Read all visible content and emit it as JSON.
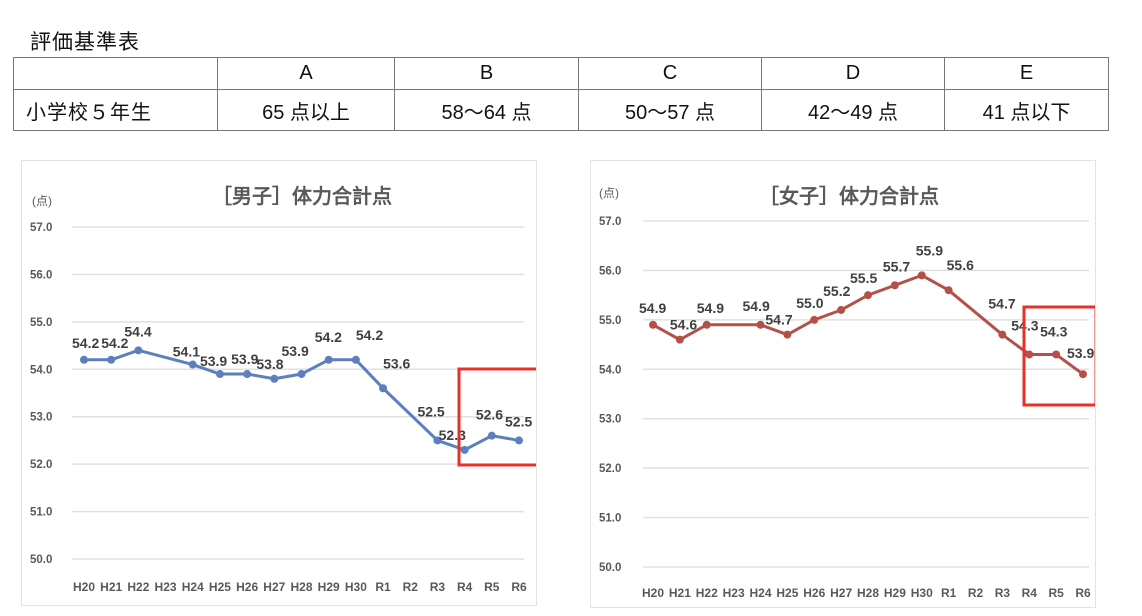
{
  "page_title": "評価基準表",
  "criteria_table": {
    "headers": [
      "",
      "A",
      "B",
      "C",
      "D",
      "E"
    ],
    "rows": [
      {
        "label": "小学校５年生",
        "cells": [
          "65 点以上",
          "58〜64 点",
          "50〜57 点",
          "42〜49 点",
          "41 点以下"
        ]
      }
    ]
  },
  "colors": {
    "boys_line": "#5B7FBF",
    "girls_line": "#B4504A",
    "highlight_box": "#E8302A",
    "gridline": "#e0e0e0",
    "text": "#595959"
  },
  "chart_data": [
    {
      "type": "line",
      "title": "［男子］体力合計点",
      "ylabel": "(点)",
      "xlabel": "",
      "categories": [
        "H20",
        "H21",
        "H22",
        "H23",
        "H24",
        "H25",
        "H26",
        "H27",
        "H28",
        "H29",
        "H30",
        "R1",
        "R2",
        "R3",
        "R4",
        "R5",
        "R6"
      ],
      "series": [
        {
          "name": "男子",
          "color": "#5B7FBF",
          "values": [
            54.2,
            54.2,
            54.4,
            null,
            54.1,
            53.9,
            53.9,
            53.8,
            53.9,
            54.2,
            54.2,
            53.6,
            null,
            52.5,
            52.3,
            52.6,
            52.5
          ]
        }
      ],
      "points": [
        {
          "x": "H20",
          "y": 54.2
        },
        {
          "x": "H21",
          "y": 54.2
        },
        {
          "x": "H22",
          "y": 54.4
        },
        {
          "x": "H24",
          "y": 54.1
        },
        {
          "x": "H25",
          "y": 53.9
        },
        {
          "x": "H26",
          "y": 53.9
        },
        {
          "x": "H27",
          "y": 53.8
        },
        {
          "x": "H28",
          "y": 53.9
        },
        {
          "x": "H29",
          "y": 54.2
        },
        {
          "x": "H30",
          "y": 54.2
        },
        {
          "x": "R1",
          "y": 53.6
        },
        {
          "x": "R3",
          "y": 52.5
        },
        {
          "x": "R4",
          "y": 52.3
        },
        {
          "x": "R5",
          "y": 52.6
        },
        {
          "x": "R6",
          "y": 52.5
        }
      ],
      "yticks": [
        "57.0",
        "56.0",
        "55.0",
        "54.0",
        "53.0",
        "52.0",
        "51.0",
        "50.0"
      ],
      "ylim": [
        50.0,
        57.0
      ],
      "grid": true,
      "legend": "none",
      "annotations": [
        "Red box highlights R5–R6"
      ]
    },
    {
      "type": "line",
      "title": "［女子］体力合計点",
      "ylabel": "(点)",
      "xlabel": "",
      "categories": [
        "H20",
        "H21",
        "H22",
        "H23",
        "H24",
        "H25",
        "H26",
        "H27",
        "H28",
        "H29",
        "H30",
        "R1",
        "R2",
        "R3",
        "R4",
        "R5",
        "R6"
      ],
      "series": [
        {
          "name": "女子",
          "color": "#B4504A",
          "values": [
            54.9,
            54.6,
            54.9,
            null,
            54.9,
            54.7,
            55.0,
            55.2,
            55.5,
            55.7,
            55.9,
            55.6,
            null,
            54.7,
            54.3,
            54.3,
            53.9
          ]
        }
      ],
      "points": [
        {
          "x": "H20",
          "y": 54.9
        },
        {
          "x": "H21",
          "y": 54.6
        },
        {
          "x": "H22",
          "y": 54.9
        },
        {
          "x": "H24",
          "y": 54.9
        },
        {
          "x": "H25",
          "y": 54.7
        },
        {
          "x": "H26",
          "y": 55.0
        },
        {
          "x": "H27",
          "y": 55.2
        },
        {
          "x": "H28",
          "y": 55.5
        },
        {
          "x": "H29",
          "y": 55.7
        },
        {
          "x": "H30",
          "y": 55.9
        },
        {
          "x": "R1",
          "y": 55.6
        },
        {
          "x": "R3",
          "y": 54.7
        },
        {
          "x": "R4",
          "y": 54.3
        },
        {
          "x": "R5",
          "y": 54.3
        },
        {
          "x": "R6",
          "y": 53.9
        }
      ],
      "yticks": [
        "57.0",
        "56.0",
        "55.0",
        "54.0",
        "53.0",
        "52.0",
        "51.0",
        "50.0"
      ],
      "ylim": [
        50.0,
        57.0
      ],
      "grid": true,
      "legend": "none",
      "annotations": [
        "Red box highlights R5–R6"
      ]
    }
  ]
}
